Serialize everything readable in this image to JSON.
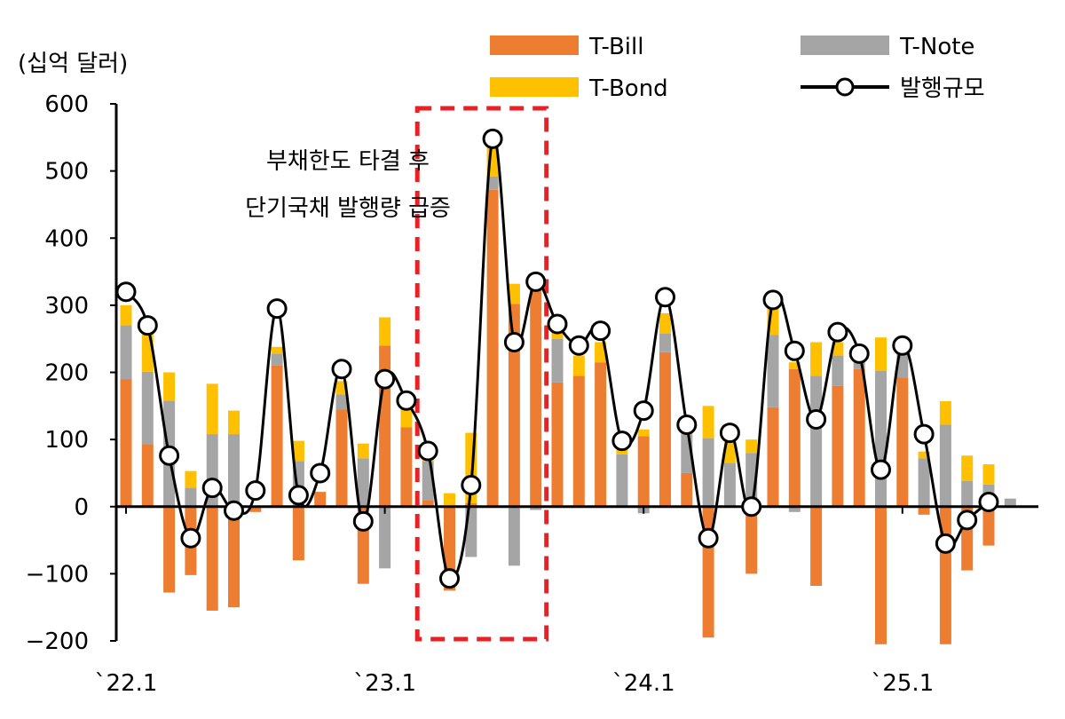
{
  "chart_data": {
    "type": "bar",
    "unit_label": "(십억 달러)",
    "ylim": [
      -200,
      600
    ],
    "yticks": [
      -200,
      -100,
      0,
      100,
      200,
      300,
      400,
      500,
      600
    ],
    "ytick_labels": [
      "−200",
      "−100",
      "0",
      "100",
      "200",
      "300",
      "400",
      "500",
      "600"
    ],
    "xtick_labels": [
      {
        "index": 0,
        "label": "`22.1"
      },
      {
        "index": 12,
        "label": "`23.1"
      },
      {
        "index": 24,
        "label": "`24.1"
      },
      {
        "index": 36,
        "label": "`25.1"
      }
    ],
    "n_periods": 42,
    "colors": {
      "tbill": "#ED7D31",
      "tnote": "#A5A5A5",
      "tbond": "#FFC000",
      "line": "#000000",
      "highlight": "#E82127"
    },
    "legend": [
      {
        "key": "tbill",
        "label": "T-Bill",
        "kind": "bar"
      },
      {
        "key": "tnote",
        "label": "T-Note",
        "kind": "bar"
      },
      {
        "key": "tbond",
        "label": "T-Bond",
        "kind": "bar"
      },
      {
        "key": "issuance",
        "label": "발행규모",
        "kind": "line"
      }
    ],
    "series": [
      {
        "key": "tbill",
        "name": "T-Bill",
        "values": [
          190,
          93,
          -128,
          -102,
          -155,
          -150,
          -8,
          210,
          -80,
          22,
          145,
          -115,
          240,
          118,
          10,
          -125,
          5,
          472,
          302,
          330,
          185,
          195,
          215,
          0,
          105,
          230,
          50,
          -195,
          0,
          -100,
          148,
          205,
          -118,
          180,
          205,
          -205,
          192,
          -12,
          -205,
          -95,
          -58,
          0
        ]
      },
      {
        "key": "tnote",
        "name": "T-Note",
        "values": [
          80,
          108,
          158,
          28,
          108,
          108,
          0,
          18,
          68,
          0,
          22,
          72,
          -92,
          0,
          58,
          0,
          -75,
          20,
          -88,
          -5,
          65,
          0,
          0,
          78,
          -10,
          28,
          58,
          102,
          65,
          80,
          108,
          -8,
          195,
          45,
          10,
          202,
          35,
          72,
          122,
          38,
          33,
          12
        ]
      },
      {
        "key": "tbond",
        "name": "T-Bond",
        "values": [
          30,
          60,
          42,
          25,
          75,
          35,
          0,
          10,
          30,
          0,
          20,
          22,
          42,
          28,
          15,
          20,
          105,
          62,
          30,
          5,
          15,
          30,
          30,
          10,
          10,
          30,
          15,
          48,
          45,
          20,
          40,
          10,
          50,
          20,
          10,
          50,
          10,
          10,
          35,
          38,
          30,
          0
        ]
      },
      {
        "key": "issuance",
        "name": "발행규모",
        "values": [
          320,
          270,
          76,
          -47,
          28,
          -6,
          24,
          295,
          17,
          50,
          205,
          -22,
          190,
          158,
          83,
          -107,
          32,
          548,
          245,
          335,
          272,
          240,
          262,
          98,
          143,
          312,
          122,
          -47,
          110,
          0,
          308,
          232,
          130,
          260,
          228,
          55,
          240,
          108,
          -55,
          -20,
          7,
          null
        ]
      }
    ],
    "annotation": {
      "lines": [
        "부채한도 타결 후",
        "단기국채 발행량 급증"
      ],
      "highlight_range": [
        14,
        19
      ]
    }
  }
}
